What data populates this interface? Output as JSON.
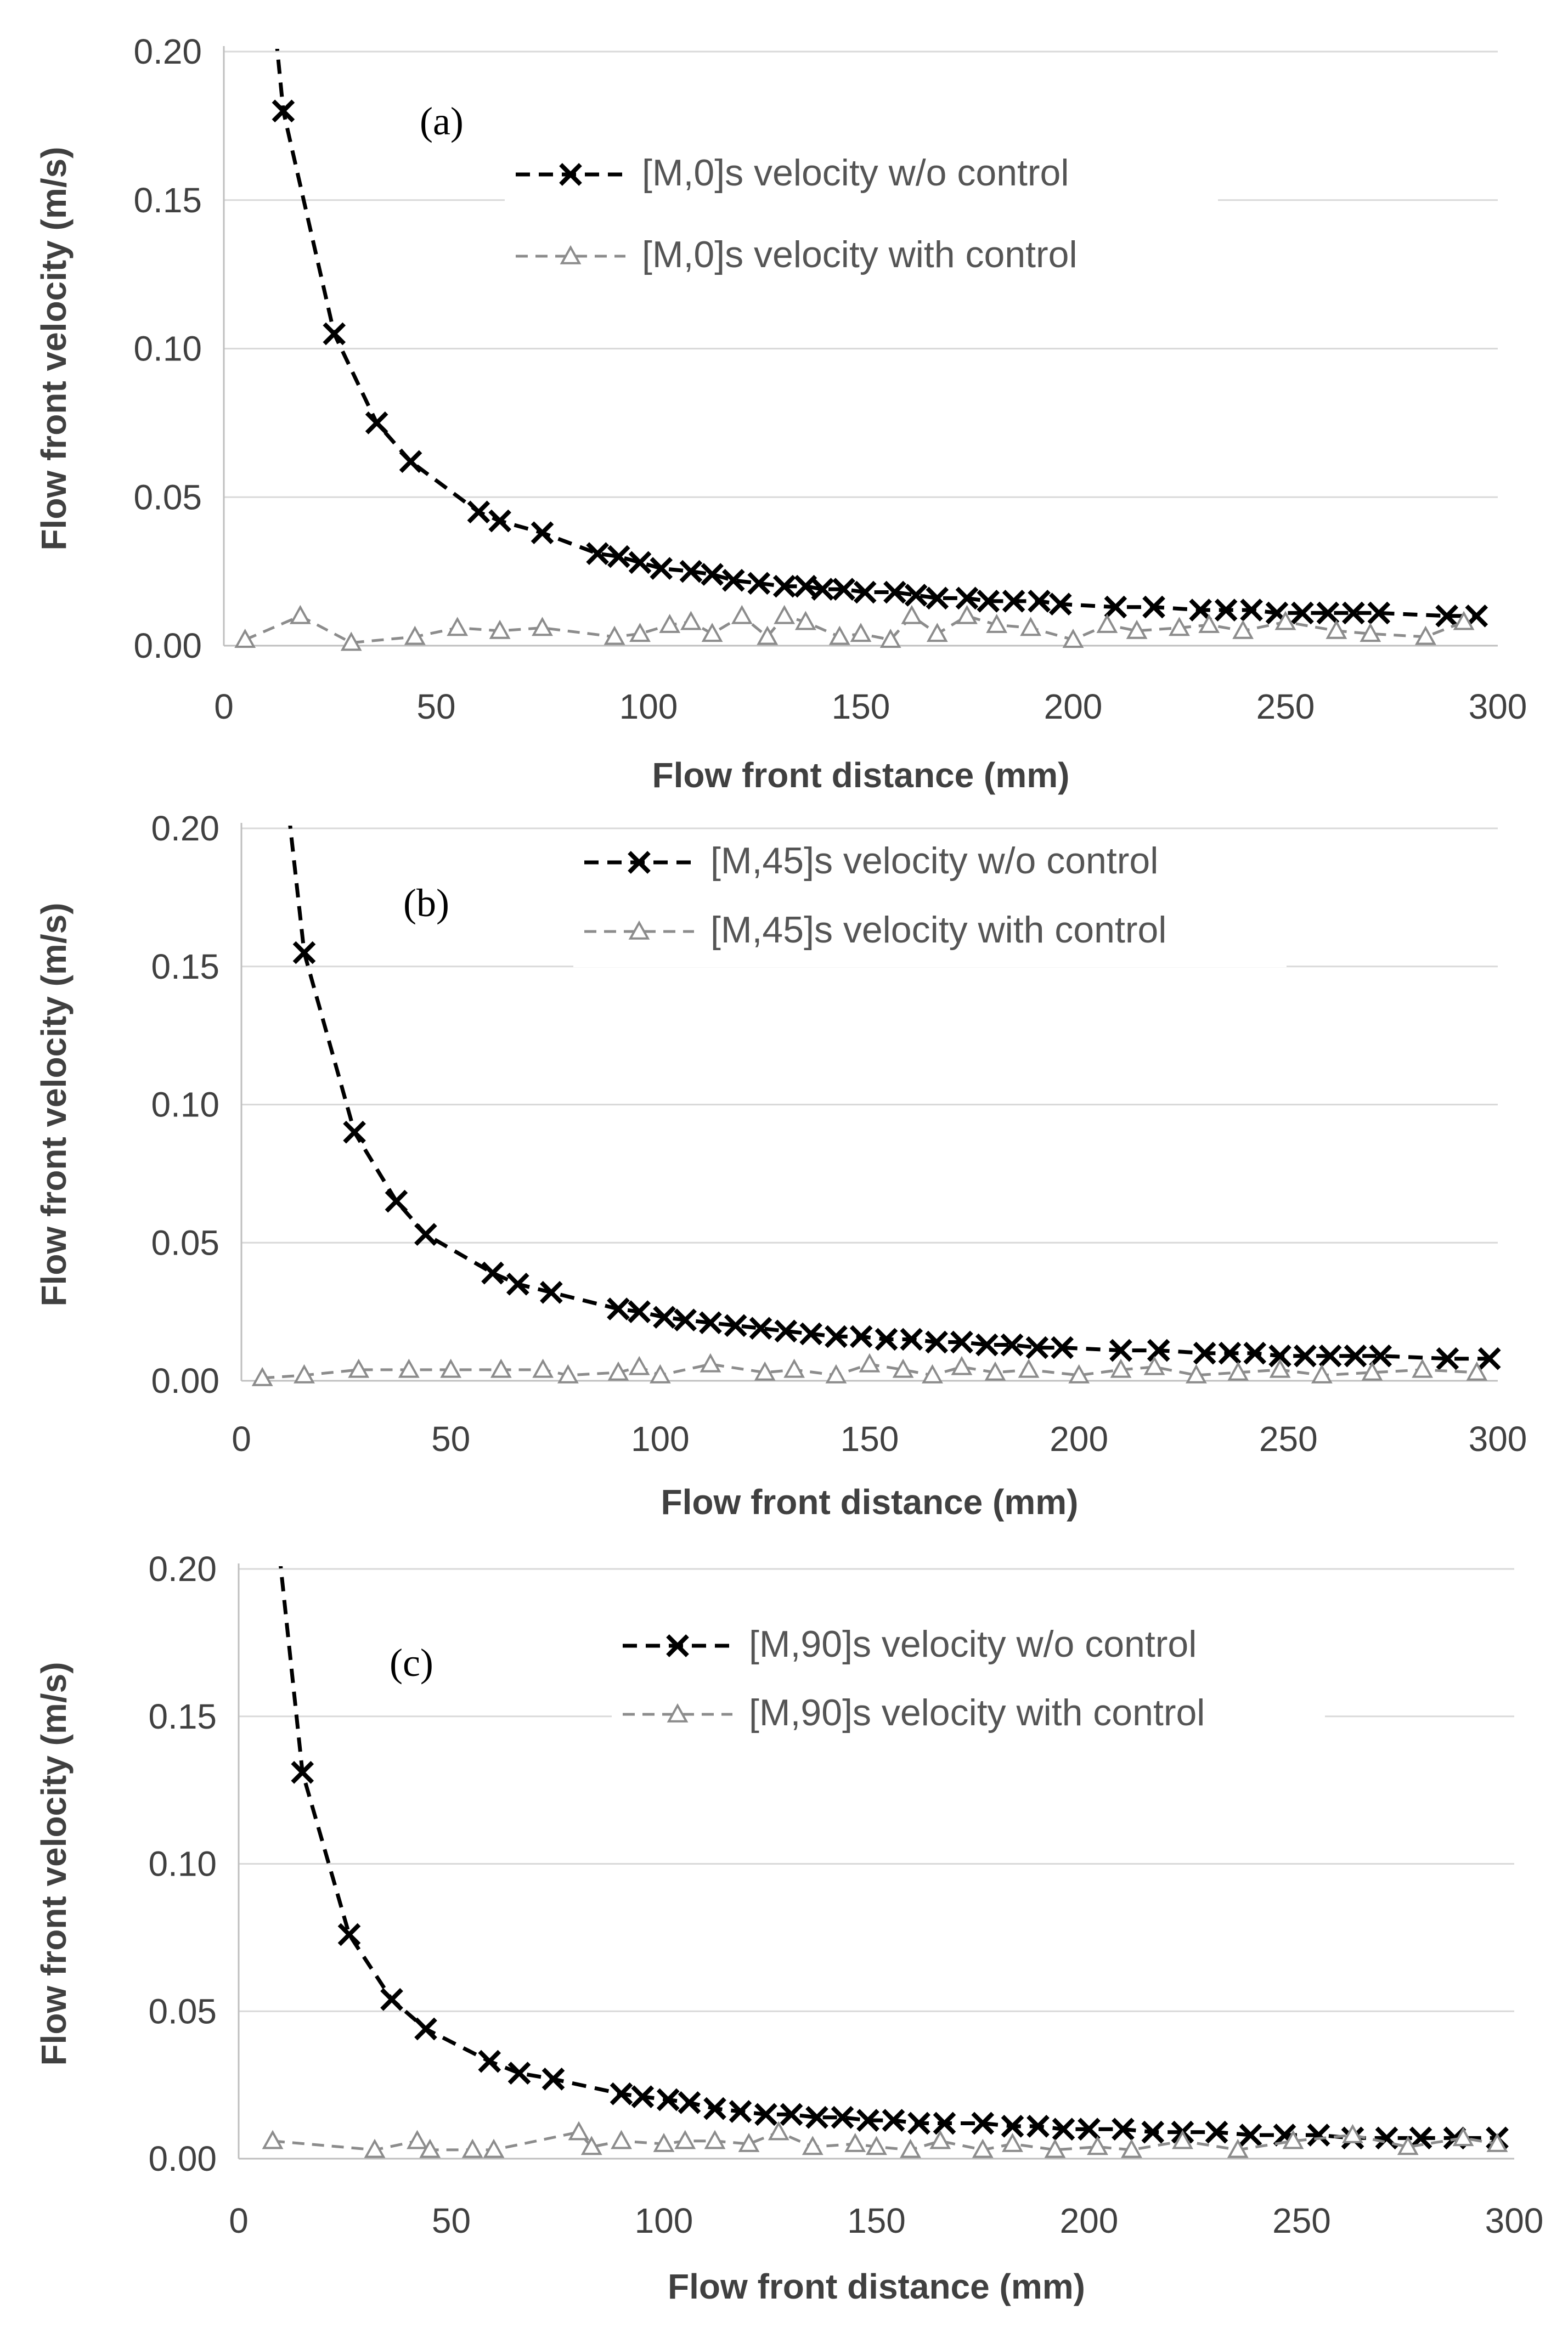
{
  "chart_data": [
    {
      "type": "scatter",
      "panel_label": "(a)",
      "xlabel": "Flow front distance (mm)",
      "ylabel": "Flow front velocity (m/s)",
      "xlim": [
        0,
        300
      ],
      "ylim": [
        0,
        0.2
      ],
      "xticks": [
        "0",
        "50",
        "100",
        "150",
        "200",
        "250",
        "300"
      ],
      "yticks": [
        "0.00",
        "0.05",
        "0.10",
        "0.15",
        "0.20"
      ],
      "legend_position": "top-right",
      "series": [
        {
          "name": "[M,0]s velocity w/o control",
          "color": "#000000",
          "marker": "x",
          "line": "dashed",
          "x": [
            14,
            26,
            36,
            44,
            60,
            65,
            75,
            88,
            93,
            98,
            103,
            110,
            115,
            120,
            126,
            132,
            137,
            141,
            146,
            151,
            158,
            163,
            168,
            175,
            180,
            186,
            192,
            197,
            210,
            219,
            230,
            236,
            242,
            248,
            254,
            260,
            266,
            272,
            288,
            295
          ],
          "y": [
            0.18,
            0.105,
            0.075,
            0.062,
            0.045,
            0.042,
            0.038,
            0.031,
            0.03,
            0.028,
            0.026,
            0.025,
            0.024,
            0.022,
            0.021,
            0.02,
            0.02,
            0.019,
            0.019,
            0.018,
            0.018,
            0.017,
            0.016,
            0.016,
            0.015,
            0.015,
            0.015,
            0.014,
            0.013,
            0.013,
            0.012,
            0.012,
            0.012,
            0.011,
            0.011,
            0.011,
            0.011,
            0.011,
            0.01,
            0.01
          ]
        },
        {
          "name": "[M,0]s velocity with control",
          "color": "#8c8c8c",
          "marker": "triangle",
          "line": "dashed",
          "x": [
            5,
            18,
            30,
            45,
            55,
            65,
            75,
            92,
            98,
            105,
            110,
            115,
            122,
            128,
            132,
            137,
            145,
            150,
            157,
            162,
            168,
            175,
            182,
            190,
            200,
            208,
            215,
            225,
            232,
            240,
            250,
            262,
            270,
            283,
            292
          ],
          "y": [
            0.002,
            0.01,
            0.001,
            0.003,
            0.006,
            0.005,
            0.006,
            0.003,
            0.004,
            0.007,
            0.008,
            0.004,
            0.01,
            0.003,
            0.01,
            0.008,
            0.003,
            0.004,
            0.002,
            0.01,
            0.004,
            0.01,
            0.007,
            0.006,
            0.002,
            0.007,
            0.005,
            0.006,
            0.007,
            0.005,
            0.008,
            0.005,
            0.004,
            0.003,
            0.008
          ]
        }
      ]
    },
    {
      "type": "scatter",
      "panel_label": "(b)",
      "xlabel": "Flow front distance (mm)",
      "ylabel": "Flow front velocity (m/s)",
      "xlim": [
        0,
        300
      ],
      "ylim": [
        0,
        0.2
      ],
      "xticks": [
        "0",
        "50",
        "100",
        "150",
        "200",
        "250",
        "300"
      ],
      "yticks": [
        "0.00",
        "0.05",
        "0.10",
        "0.15",
        "0.20"
      ],
      "legend_position": "top-right",
      "series": [
        {
          "name": "[M,45]s velocity w/o control",
          "color": "#000000",
          "marker": "x",
          "line": "dashed",
          "x": [
            15,
            27,
            37,
            44,
            60,
            66,
            74,
            90,
            95,
            101,
            106,
            112,
            118,
            124,
            130,
            136,
            142,
            148,
            154,
            160,
            166,
            172,
            178,
            184,
            190,
            196,
            210,
            219,
            230,
            236,
            242,
            248,
            254,
            260,
            266,
            272,
            288,
            298
          ],
          "y": [
            0.155,
            0.09,
            0.065,
            0.053,
            0.039,
            0.035,
            0.032,
            0.026,
            0.025,
            0.023,
            0.022,
            0.021,
            0.02,
            0.019,
            0.018,
            0.017,
            0.016,
            0.016,
            0.015,
            0.015,
            0.014,
            0.014,
            0.013,
            0.013,
            0.012,
            0.012,
            0.011,
            0.011,
            0.01,
            0.01,
            0.01,
            0.009,
            0.009,
            0.009,
            0.009,
            0.009,
            0.008,
            0.008
          ]
        },
        {
          "name": "[M,45]s velocity with control",
          "color": "#8c8c8c",
          "marker": "triangle",
          "line": "dashed",
          "x": [
            5,
            15,
            28,
            40,
            50,
            62,
            72,
            78,
            90,
            95,
            100,
            112,
            125,
            132,
            142,
            150,
            158,
            165,
            172,
            180,
            188,
            200,
            210,
            218,
            228,
            238,
            248,
            258,
            270,
            282,
            295
          ],
          "y": [
            0.001,
            0.002,
            0.004,
            0.004,
            0.004,
            0.004,
            0.004,
            0.002,
            0.003,
            0.005,
            0.002,
            0.006,
            0.003,
            0.004,
            0.002,
            0.006,
            0.004,
            0.002,
            0.005,
            0.003,
            0.004,
            0.002,
            0.004,
            0.005,
            0.002,
            0.003,
            0.004,
            0.002,
            0.003,
            0.004,
            0.003
          ]
        }
      ]
    },
    {
      "type": "scatter",
      "panel_label": "(c)",
      "xlabel": "Flow front distance (mm)",
      "ylabel": "Flow front velocity (m/s)",
      "xlim": [
        0,
        300
      ],
      "ylim": [
        0,
        0.2
      ],
      "xticks": [
        "0",
        "50",
        "100",
        "150",
        "200",
        "250",
        "300"
      ],
      "yticks": [
        "0.00",
        "0.05",
        "0.10",
        "0.15",
        "0.20"
      ],
      "legend_position": "top-right",
      "series": [
        {
          "name": "[M,90]s velocity w/o control",
          "color": "#000000",
          "marker": "x",
          "line": "dashed",
          "x": [
            15,
            26,
            36,
            44,
            59,
            66,
            74,
            90,
            95,
            101,
            106,
            112,
            118,
            124,
            130,
            136,
            142,
            148,
            154,
            160,
            166,
            175,
            182,
            188,
            194,
            200,
            208,
            215,
            222,
            230,
            238,
            246,
            254,
            262,
            270,
            278,
            286,
            296
          ],
          "y": [
            0.131,
            0.076,
            0.054,
            0.044,
            0.033,
            0.029,
            0.027,
            0.022,
            0.021,
            0.02,
            0.019,
            0.017,
            0.016,
            0.015,
            0.015,
            0.014,
            0.014,
            0.013,
            0.013,
            0.012,
            0.012,
            0.012,
            0.011,
            0.011,
            0.01,
            0.01,
            0.01,
            0.009,
            0.009,
            0.009,
            0.008,
            0.008,
            0.008,
            0.007,
            0.007,
            0.007,
            0.007,
            0.007
          ]
        },
        {
          "name": "[M,90]s velocity with control",
          "color": "#8c8c8c",
          "marker": "triangle",
          "line": "dashed",
          "x": [
            8,
            32,
            42,
            45,
            55,
            60,
            80,
            83,
            90,
            100,
            105,
            112,
            120,
            127,
            135,
            145,
            150,
            158,
            165,
            175,
            182,
            192,
            202,
            210,
            222,
            235,
            248,
            262,
            275,
            288,
            296
          ],
          "y": [
            0.006,
            0.003,
            0.006,
            0.003,
            0.003,
            0.003,
            0.009,
            0.004,
            0.006,
            0.005,
            0.006,
            0.006,
            0.005,
            0.009,
            0.004,
            0.005,
            0.004,
            0.003,
            0.006,
            0.003,
            0.005,
            0.003,
            0.004,
            0.003,
            0.006,
            0.003,
            0.006,
            0.008,
            0.004,
            0.007,
            0.005
          ]
        }
      ]
    }
  ]
}
